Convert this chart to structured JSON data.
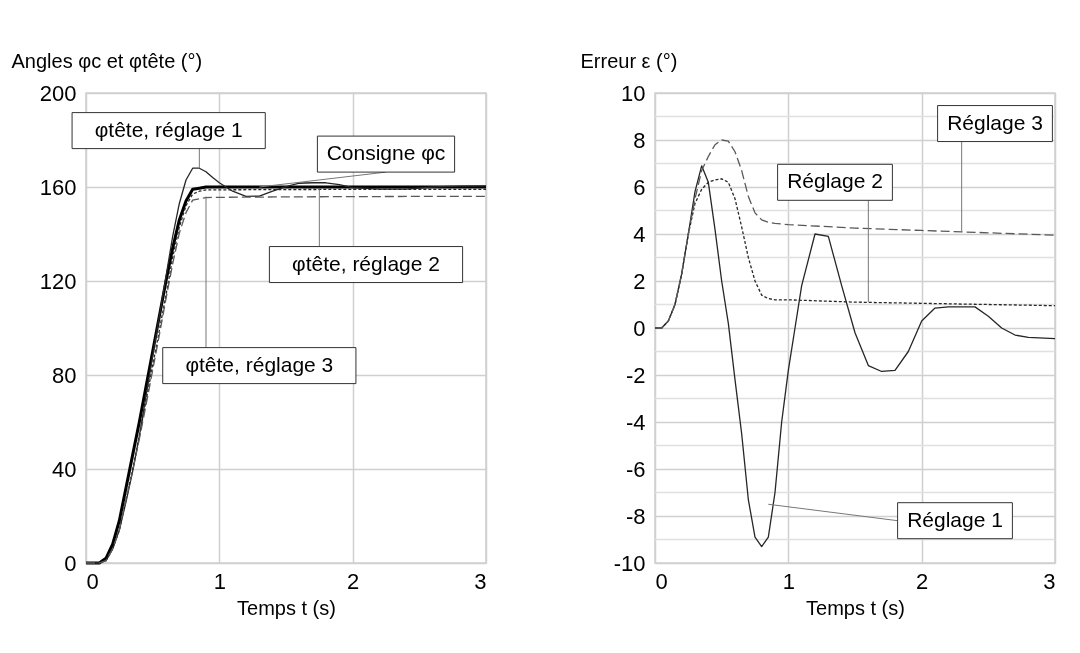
{
  "chart_data": [
    {
      "type": "line",
      "ylabel": "Angles φc et φtête (°)",
      "xlabel": "Temps t (s)",
      "xlim": [
        0,
        3
      ],
      "xticks": [
        0,
        1,
        2,
        3
      ],
      "ylim": [
        0,
        200
      ],
      "yticks": [
        0,
        40,
        80,
        120,
        160,
        200
      ],
      "grid": true,
      "series": [
        {
          "color": "#000000",
          "line_style": "solid",
          "x": [
            0,
            0.1,
            0.15,
            0.2,
            0.25,
            0.3,
            0.35,
            0.4,
            0.45,
            0.5,
            0.55,
            0.6,
            0.65,
            0.7,
            0.75,
            0.8,
            0.85,
            0.9,
            1.0,
            1.5,
            2.0,
            2.5,
            3.0
          ],
          "values": [
            0,
            0,
            2,
            8,
            18,
            32,
            46,
            60,
            75,
            90,
            105,
            120,
            134,
            146,
            154,
            159,
            159.5,
            160,
            160,
            160,
            160,
            160,
            160
          ]
        },
        {
          "color": "#262626",
          "line_style": "solid",
          "x": [
            0,
            0.1,
            0.15,
            0.2,
            0.25,
            0.3,
            0.35,
            0.4,
            0.45,
            0.5,
            0.55,
            0.6,
            0.65,
            0.7,
            0.75,
            0.8,
            0.85,
            0.9,
            0.95,
            1.0,
            1.1,
            1.2,
            1.3,
            1.4,
            1.5,
            1.6,
            1.7,
            1.8,
            1.9,
            2.0,
            2.2,
            2.4,
            2.6,
            2.8,
            3.0
          ],
          "values": [
            0,
            0,
            1,
            6,
            14,
            26,
            39,
            54,
            71,
            88,
            105,
            122,
            139,
            153,
            163,
            168,
            168,
            166.5,
            164,
            161.8,
            158.2,
            156,
            156.1,
            158.2,
            160.2,
            161.6,
            161.8,
            161.8,
            161,
            159.7,
            159.1,
            159.1,
            160,
            160.4,
            160.5
          ]
        },
        {
          "color": "#262626",
          "line_style": "dotted",
          "x": [
            0,
            0.1,
            0.15,
            0.2,
            0.25,
            0.3,
            0.35,
            0.4,
            0.45,
            0.5,
            0.55,
            0.6,
            0.65,
            0.7,
            0.75,
            0.8,
            0.85,
            0.9,
            1.0,
            1.5,
            2.0,
            2.5,
            3.0
          ],
          "values": [
            0,
            0,
            1,
            6,
            14,
            27,
            40,
            54,
            69,
            84,
            99,
            114,
            130,
            143,
            152,
            157,
            158.2,
            158.8,
            158.8,
            158.9,
            159,
            159,
            159
          ]
        },
        {
          "color": "#595959",
          "line_style": "dashed",
          "x": [
            0,
            0.1,
            0.15,
            0.2,
            0.25,
            0.3,
            0.35,
            0.4,
            0.45,
            0.5,
            0.55,
            0.6,
            0.65,
            0.7,
            0.75,
            0.8,
            0.85,
            0.9,
            1.0,
            1.5,
            2.0,
            2.5,
            3.0
          ],
          "values": [
            0,
            0,
            1,
            6,
            14,
            27,
            39.3,
            52.7,
            67.2,
            82,
            97,
            112.5,
            127.3,
            140.4,
            149.1,
            154.4,
            155,
            155.5,
            155.6,
            155.8,
            155.9,
            156,
            156
          ]
        }
      ],
      "annotations": [
        {
          "text": "φtête, réglage 1",
          "x": 0.85,
          "y": 168
        },
        {
          "text": "Consigne φc",
          "x": 1.3,
          "y": 160
        },
        {
          "text": "φtête, réglage 2",
          "x": 1.75,
          "y": 159
        },
        {
          "text": "φtête, réglage 3",
          "x": 0.9,
          "y": 156
        }
      ]
    },
    {
      "type": "line",
      "ylabel": "Erreur ε (°)",
      "xlabel": "Temps t (s)",
      "xlim": [
        0,
        3
      ],
      "xticks": [
        0,
        1,
        2,
        3
      ],
      "ylim": [
        -10,
        10
      ],
      "yticks": [
        -10,
        {
          "value": -9,
          "label": null
        },
        -8,
        {
          "value": -7,
          "label": null
        },
        -6,
        {
          "value": -5,
          "label": null
        },
        -4,
        {
          "value": -3,
          "label": null
        },
        -2,
        {
          "value": -1,
          "label": null
        },
        0,
        {
          "value": 1,
          "label": null
        },
        2,
        {
          "value": 3,
          "label": null
        },
        4,
        {
          "value": 5,
          "label": null
        },
        6,
        {
          "value": 7,
          "label": null
        },
        8,
        {
          "value": 9,
          "label": null
        },
        10
      ],
      "grid": true,
      "series": [
        {
          "color": "#262626",
          "line_style": "solid",
          "x": [
            0,
            0.05,
            0.1,
            0.15,
            0.2,
            0.25,
            0.3,
            0.35,
            0.4,
            0.45,
            0.5,
            0.55,
            0.6,
            0.65,
            0.7,
            0.75,
            0.8,
            0.85,
            0.9,
            0.95,
            1.0,
            1.05,
            1.1,
            1.2,
            1.3,
            1.4,
            1.5,
            1.6,
            1.7,
            1.8,
            1.9,
            2.0,
            2.1,
            2.2,
            2.4,
            2.5,
            2.6,
            2.7,
            2.8,
            3.0
          ],
          "values": [
            0,
            0,
            0.3,
            1.0,
            2.3,
            4.0,
            5.8,
            6.9,
            6.2,
            4.2,
            2.0,
            0.2,
            -2.2,
            -4.5,
            -7.3,
            -8.9,
            -9.3,
            -8.9,
            -7,
            -4,
            -1.8,
            0,
            1.8,
            4.0,
            3.9,
            1.8,
            -0.2,
            -1.6,
            -1.85,
            -1.8,
            -1.0,
            0.3,
            0.85,
            0.9,
            0.9,
            0.5,
            0,
            -0.3,
            -0.4,
            -0.45
          ]
        },
        {
          "color": "#262626",
          "line_style": "dotted",
          "x": [
            0,
            0.05,
            0.1,
            0.15,
            0.2,
            0.25,
            0.3,
            0.35,
            0.4,
            0.45,
            0.5,
            0.55,
            0.6,
            0.65,
            0.7,
            0.75,
            0.8,
            0.85,
            0.9,
            1.0,
            1.5,
            2.0,
            2.5,
            3.0
          ],
          "values": [
            0,
            0,
            0.3,
            1.0,
            2.3,
            4.0,
            5.3,
            5.9,
            6.2,
            6.3,
            6.35,
            6.2,
            5.5,
            4.3,
            3.0,
            2.0,
            1.4,
            1.25,
            1.2,
            1.2,
            1.1,
            1.05,
            1.0,
            0.95
          ]
        },
        {
          "color": "#595959",
          "line_style": "dashed",
          "x": [
            0,
            0.05,
            0.1,
            0.15,
            0.2,
            0.25,
            0.3,
            0.35,
            0.4,
            0.45,
            0.5,
            0.55,
            0.6,
            0.65,
            0.7,
            0.75,
            0.8,
            0.85,
            0.9,
            1.0,
            1.5,
            2.0,
            2.5,
            3.0
          ],
          "values": [
            0,
            0,
            0.3,
            1.0,
            2.3,
            4.0,
            5.5,
            6.7,
            7.3,
            7.8,
            8.0,
            7.95,
            7.5,
            6.7,
            5.6,
            4.9,
            4.6,
            4.5,
            4.45,
            4.4,
            4.25,
            4.15,
            4.05,
            3.95
          ]
        }
      ],
      "annotations": [
        {
          "text": "Réglage 3",
          "x": 2.3,
          "y": 4.1
        },
        {
          "text": "Réglage 2",
          "x": 1.6,
          "y": 1.1
        },
        {
          "text": "Réglage 1",
          "x": 0.85,
          "y": -7.5
        }
      ]
    }
  ]
}
